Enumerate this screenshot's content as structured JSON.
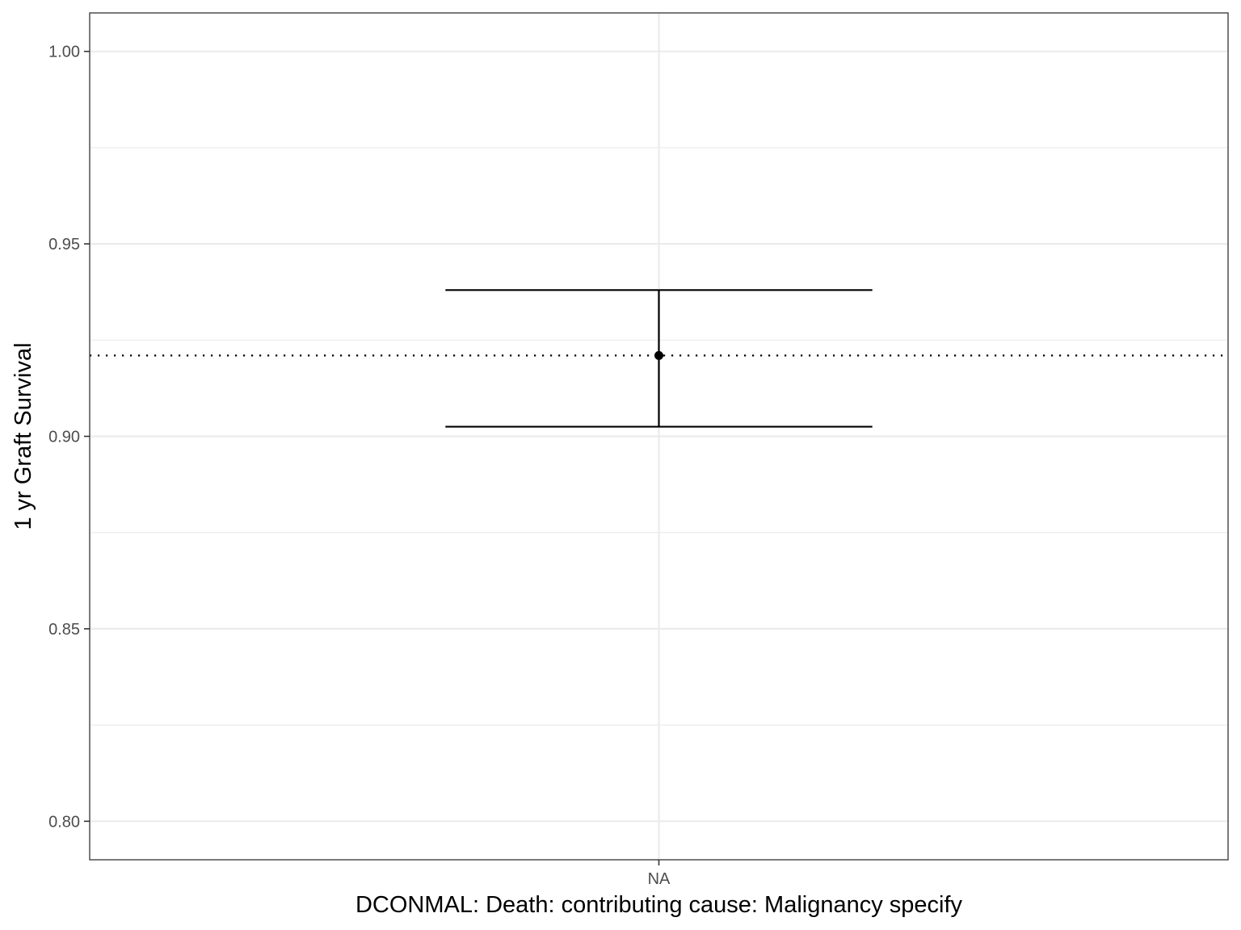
{
  "chart_data": {
    "type": "scatter",
    "title": "",
    "xlabel": "DCONMAL: Death: contributing cause: Malignancy specify",
    "ylabel": "1 yr Graft Survival",
    "categories": [
      "NA"
    ],
    "points": [
      {
        "x": "NA",
        "y": 0.921,
        "ymin": 0.9025,
        "ymax": 0.938
      }
    ],
    "reference_line": {
      "y": 0.921,
      "style": "dotted"
    },
    "ylim": [
      0.79,
      1.01
    ],
    "yticks": [
      0.8,
      0.85,
      0.9,
      0.95,
      1.0
    ],
    "ytick_labels": [
      "0.80",
      "0.85",
      "0.90",
      "0.95",
      "1.00"
    ],
    "grid": true,
    "legend": "none",
    "colors": {
      "mark": "#000000",
      "grid": "#ebebeb",
      "panel_border": "#333333"
    }
  }
}
